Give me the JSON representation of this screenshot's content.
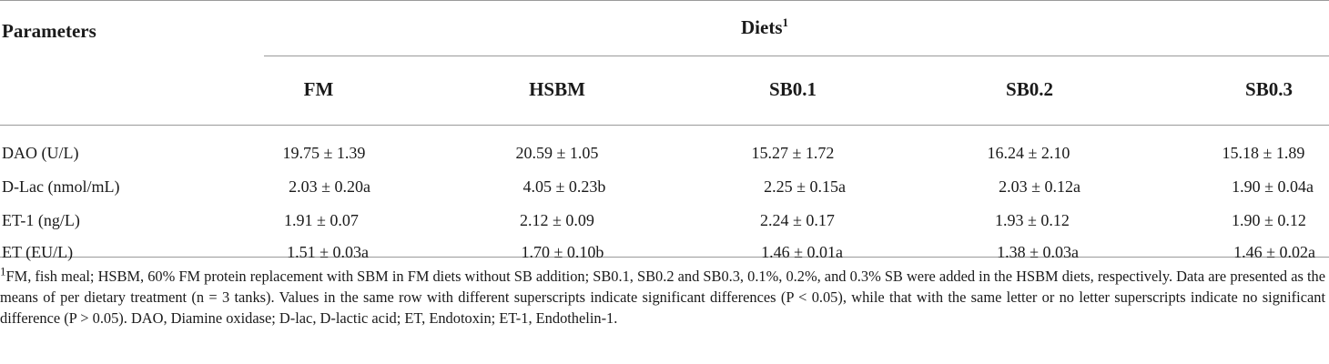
{
  "table": {
    "param_header": "Parameters",
    "diets_header": "Diets",
    "diets_header_sup": "1",
    "columns": [
      "FM",
      "HSBM",
      "SB0.1",
      "SB0.2",
      "SB0.3"
    ],
    "rows": [
      {
        "param": "DAO (U/L)",
        "values": [
          "19.75 ± 1.39",
          "20.59 ± 1.05",
          "15.27 ± 1.72",
          "16.24 ± 2.10",
          "15.18 ± 1.89"
        ]
      },
      {
        "param": "D-Lac (nmol/mL)",
        "values": [
          "2.03 ± 0.20a",
          "4.05 ± 0.23b",
          "2.25 ± 0.15a",
          "2.03 ± 0.12a",
          "1.90 ± 0.04a"
        ]
      },
      {
        "param": "ET-1 (ng/L)",
        "values": [
          "1.91 ± 0.07",
          "2.12 ± 0.09",
          "2.24 ± 0.17",
          "1.93 ± 0.12",
          "1.90 ± 0.12"
        ]
      },
      {
        "param": "ET (EU/L)",
        "values": [
          "1.51 ± 0.03a",
          "1.70 ± 0.10b",
          "1.46 ± 0.01a",
          "1.38 ± 0.03a",
          "1.46 ± 0.02a"
        ]
      }
    ]
  },
  "footnote": {
    "sup": "1",
    "text": "FM, fish meal; HSBM, 60% FM protein replacement with SBM in FM diets without SB addition; SB0.1, SB0.2 and SB0.3, 0.1%, 0.2%, and 0.3% SB were added in the HSBM diets, respectively. Data are presented as the means of per dietary treatment (n = 3 tanks). Values in the same row with different superscripts indicate significant differences (P < 0.05), while that with the same letter or no letter superscripts indicate no significant difference (P > 0.05). DAO, Diamine oxidase; D-lac, D-lactic acid; ET, Endotoxin; ET-1, Endothelin-1."
  }
}
